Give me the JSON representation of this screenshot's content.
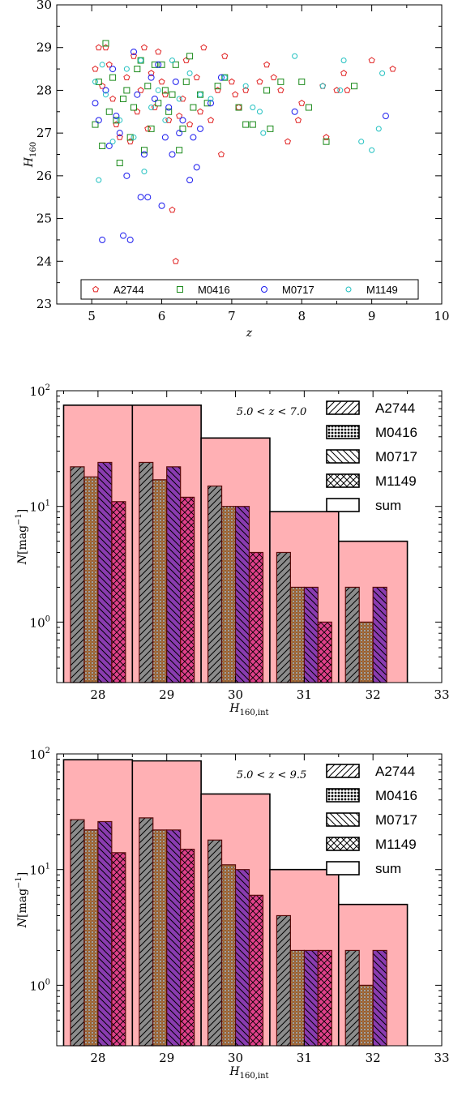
{
  "chart_data": [
    {
      "type": "scatter",
      "title": "",
      "xlabel": "z",
      "ylabel": "H160",
      "xlim": [
        4.5,
        10
      ],
      "ylim": [
        23,
        30
      ],
      "xticks": [
        5,
        6,
        7,
        8,
        9,
        10
      ],
      "yticks": [
        23,
        24,
        25,
        26,
        27,
        28,
        29,
        30
      ],
      "legend_position": "bottom-center",
      "series": [
        {
          "name": "A2744",
          "marker": "pentagon",
          "color": "#e02020",
          "points": [
            [
              5.05,
              28.5
            ],
            [
              5.1,
              29.0
            ],
            [
              5.15,
              28.1
            ],
            [
              5.2,
              29.0
            ],
            [
              5.25,
              28.6
            ],
            [
              5.3,
              27.8
            ],
            [
              5.35,
              27.2
            ],
            [
              5.4,
              26.9
            ],
            [
              5.5,
              28.3
            ],
            [
              5.55,
              26.8
            ],
            [
              5.6,
              28.8
            ],
            [
              5.65,
              27.5
            ],
            [
              5.7,
              28.0
            ],
            [
              5.75,
              29.0
            ],
            [
              5.8,
              27.1
            ],
            [
              5.85,
              28.4
            ],
            [
              5.9,
              27.6
            ],
            [
              5.95,
              28.9
            ],
            [
              6.0,
              28.2
            ],
            [
              6.05,
              27.9
            ],
            [
              6.1,
              27.3
            ],
            [
              6.15,
              25.2
            ],
            [
              6.2,
              24.0
            ],
            [
              6.25,
              27.4
            ],
            [
              6.3,
              27.8
            ],
            [
              6.35,
              28.7
            ],
            [
              6.4,
              27.2
            ],
            [
              6.5,
              28.3
            ],
            [
              6.55,
              27.5
            ],
            [
              6.6,
              29.0
            ],
            [
              6.7,
              27.3
            ],
            [
              6.8,
              28.0
            ],
            [
              6.85,
              26.5
            ],
            [
              6.9,
              28.8
            ],
            [
              7.0,
              28.2
            ],
            [
              7.05,
              27.9
            ],
            [
              7.1,
              27.6
            ],
            [
              7.2,
              28.0
            ],
            [
              7.4,
              28.2
            ],
            [
              7.5,
              28.6
            ],
            [
              7.6,
              28.3
            ],
            [
              7.7,
              28.0
            ],
            [
              7.8,
              26.8
            ],
            [
              7.95,
              27.3
            ],
            [
              8.0,
              27.7
            ],
            [
              8.3,
              28.1
            ],
            [
              8.35,
              26.9
            ],
            [
              8.5,
              28.0
            ],
            [
              8.6,
              28.4
            ],
            [
              8.65,
              28.0
            ],
            [
              9.0,
              28.7
            ],
            [
              9.3,
              28.5
            ]
          ]
        },
        {
          "name": "M0416",
          "marker": "square",
          "color": "#1a8a1a",
          "points": [
            [
              5.05,
              27.2
            ],
            [
              5.1,
              28.2
            ],
            [
              5.15,
              26.7
            ],
            [
              5.2,
              29.1
            ],
            [
              5.25,
              27.5
            ],
            [
              5.3,
              28.3
            ],
            [
              5.35,
              27.3
            ],
            [
              5.4,
              26.3
            ],
            [
              5.45,
              27.8
            ],
            [
              5.5,
              28.0
            ],
            [
              5.55,
              26.9
            ],
            [
              5.6,
              27.6
            ],
            [
              5.65,
              28.5
            ],
            [
              5.7,
              28.7
            ],
            [
              5.75,
              26.6
            ],
            [
              5.8,
              28.1
            ],
            [
              5.85,
              27.1
            ],
            [
              5.9,
              28.6
            ],
            [
              5.95,
              27.7
            ],
            [
              6.0,
              28.6
            ],
            [
              6.05,
              28.0
            ],
            [
              6.1,
              27.5
            ],
            [
              6.15,
              27.9
            ],
            [
              6.2,
              28.6
            ],
            [
              6.25,
              26.6
            ],
            [
              6.3,
              27.1
            ],
            [
              6.35,
              28.2
            ],
            [
              6.4,
              28.8
            ],
            [
              6.45,
              27.6
            ],
            [
              6.55,
              27.9
            ],
            [
              6.65,
              27.7
            ],
            [
              6.8,
              28.1
            ],
            [
              6.9,
              28.3
            ],
            [
              7.1,
              27.6
            ],
            [
              7.2,
              27.2
            ],
            [
              7.3,
              27.2
            ],
            [
              7.5,
              28.0
            ],
            [
              7.55,
              27.1
            ],
            [
              7.7,
              28.2
            ],
            [
              8.0,
              28.2
            ],
            [
              8.1,
              27.6
            ],
            [
              8.35,
              26.8
            ],
            [
              8.75,
              28.1
            ]
          ]
        },
        {
          "name": "M0717",
          "marker": "circle",
          "color": "#1a1aee",
          "points": [
            [
              5.05,
              27.7
            ],
            [
              5.1,
              27.3
            ],
            [
              5.15,
              24.5
            ],
            [
              5.2,
              28.0
            ],
            [
              5.25,
              26.7
            ],
            [
              5.3,
              28.5
            ],
            [
              5.35,
              27.4
            ],
            [
              5.4,
              27.0
            ],
            [
              5.45,
              24.6
            ],
            [
              5.5,
              26.0
            ],
            [
              5.55,
              24.5
            ],
            [
              5.6,
              28.9
            ],
            [
              5.65,
              27.9
            ],
            [
              5.7,
              25.5
            ],
            [
              5.75,
              26.5
            ],
            [
              5.8,
              25.5
            ],
            [
              5.85,
              28.3
            ],
            [
              5.9,
              27.8
            ],
            [
              5.95,
              28.6
            ],
            [
              6.0,
              25.3
            ],
            [
              6.05,
              26.9
            ],
            [
              6.1,
              27.6
            ],
            [
              6.15,
              26.5
            ],
            [
              6.2,
              28.2
            ],
            [
              6.25,
              27.0
            ],
            [
              6.3,
              27.3
            ],
            [
              6.4,
              25.9
            ],
            [
              6.45,
              26.9
            ],
            [
              6.5,
              26.2
            ],
            [
              6.55,
              27.1
            ],
            [
              6.7,
              27.7
            ],
            [
              6.85,
              28.3
            ],
            [
              7.9,
              27.5
            ],
            [
              9.2,
              27.4
            ]
          ]
        },
        {
          "name": "M1149",
          "marker": "circle-small",
          "color": "#20c0c0",
          "points": [
            [
              5.05,
              28.2
            ],
            [
              5.1,
              25.9
            ],
            [
              5.15,
              28.6
            ],
            [
              5.2,
              27.9
            ],
            [
              5.3,
              26.8
            ],
            [
              5.4,
              27.3
            ],
            [
              5.5,
              28.5
            ],
            [
              5.6,
              26.9
            ],
            [
              5.7,
              28.7
            ],
            [
              5.75,
              26.1
            ],
            [
              5.85,
              27.6
            ],
            [
              5.95,
              28.0
            ],
            [
              6.05,
              27.3
            ],
            [
              6.15,
              28.7
            ],
            [
              6.25,
              27.8
            ],
            [
              6.4,
              28.4
            ],
            [
              6.55,
              27.9
            ],
            [
              6.7,
              27.8
            ],
            [
              6.9,
              28.3
            ],
            [
              7.2,
              28.1
            ],
            [
              7.3,
              27.6
            ],
            [
              7.4,
              27.5
            ],
            [
              7.45,
              27.0
            ],
            [
              7.9,
              28.8
            ],
            [
              8.3,
              28.1
            ],
            [
              8.55,
              28.0
            ],
            [
              8.6,
              28.7
            ],
            [
              8.85,
              26.8
            ],
            [
              9.0,
              26.6
            ],
            [
              9.1,
              27.1
            ],
            [
              9.15,
              28.4
            ]
          ]
        }
      ]
    },
    {
      "type": "bar",
      "title": "",
      "annotation": "5.0 < z < 7.0",
      "xlabel": "H160,int",
      "ylabel": "N[mag^-1]",
      "yscale": "log",
      "xlim": [
        27.4,
        33
      ],
      "ylim": [
        0.3,
        100
      ],
      "xticks": [
        28,
        29,
        30,
        31,
        32,
        33
      ],
      "yticks": [
        1,
        10,
        100
      ],
      "ytick_labels": [
        "10^0",
        "10^1",
        "10^2"
      ],
      "categories": [
        28,
        29,
        30,
        31,
        32
      ],
      "series": [
        {
          "name": "A2744",
          "hatch": "forward-diagonal",
          "color": "#8c8c8c",
          "values": [
            22,
            24,
            15,
            4,
            2
          ]
        },
        {
          "name": "M0416",
          "hatch": "dots",
          "color": "#a86d3a",
          "values": [
            18,
            17,
            10,
            2,
            1
          ]
        },
        {
          "name": "M0717",
          "hatch": "back-diagonal",
          "color": "#8a3cb0",
          "values": [
            24,
            22,
            10,
            2,
            2
          ]
        },
        {
          "name": "M1149",
          "hatch": "cross",
          "color": "#e0408a",
          "values": [
            11,
            12,
            4,
            1,
            0
          ]
        },
        {
          "name": "sum",
          "hatch": "none",
          "color": "#ffb0b4",
          "values": [
            75,
            75,
            39,
            9,
            5
          ]
        }
      ]
    },
    {
      "type": "bar",
      "title": "",
      "annotation": "5.0 < z < 9.5",
      "xlabel": "H160,int",
      "ylabel": "N[mag^-1]",
      "yscale": "log",
      "xlim": [
        27.4,
        33
      ],
      "ylim": [
        0.3,
        100
      ],
      "xticks": [
        28,
        29,
        30,
        31,
        32,
        33
      ],
      "yticks": [
        1,
        10,
        100
      ],
      "ytick_labels": [
        "10^0",
        "10^1",
        "10^2"
      ],
      "categories": [
        28,
        29,
        30,
        31,
        32
      ],
      "series": [
        {
          "name": "A2744",
          "hatch": "forward-diagonal",
          "color": "#8c8c8c",
          "values": [
            27,
            28,
            18,
            4,
            2
          ]
        },
        {
          "name": "M0416",
          "hatch": "dots",
          "color": "#a86d3a",
          "values": [
            22,
            22,
            11,
            2,
            1
          ]
        },
        {
          "name": "M0717",
          "hatch": "back-diagonal",
          "color": "#8a3cb0",
          "values": [
            26,
            22,
            10,
            2,
            2
          ]
        },
        {
          "name": "M1149",
          "hatch": "cross",
          "color": "#e0408a",
          "values": [
            14,
            15,
            6,
            2,
            0
          ]
        },
        {
          "name": "sum",
          "hatch": "none",
          "color": "#ffb0b4",
          "values": [
            89,
            87,
            45,
            10,
            5
          ]
        }
      ]
    }
  ]
}
